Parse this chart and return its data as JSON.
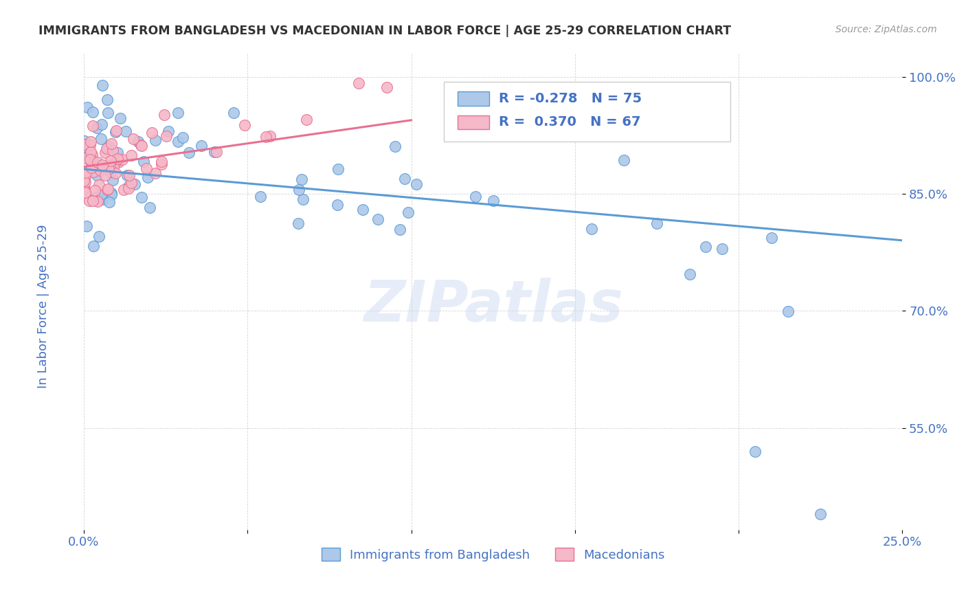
{
  "title": "IMMIGRANTS FROM BANGLADESH VS MACEDONIAN IN LABOR FORCE | AGE 25-29 CORRELATION CHART",
  "source": "Source: ZipAtlas.com",
  "ylabel": "In Labor Force | Age 25-29",
  "ytick_vals": [
    1.0,
    0.85,
    0.7,
    0.55
  ],
  "ytick_labels": [
    "100.0%",
    "85.0%",
    "70.0%",
    "55.0%"
  ],
  "xtick_vals": [
    0.0,
    0.05,
    0.1,
    0.15,
    0.2,
    0.25
  ],
  "xtick_labels": [
    "0.0%",
    "",
    "",
    "",
    "",
    "25.0%"
  ],
  "xlim": [
    0.0,
    0.25
  ],
  "ylim": [
    0.42,
    1.03
  ],
  "legend1_label": "Immigrants from Bangladesh",
  "legend2_label": "Macedonians",
  "R_bangladesh": -0.278,
  "N_bangladesh": 75,
  "R_macedonian": 0.37,
  "N_macedonian": 67,
  "color_bangladesh": "#adc8e8",
  "color_macedonian": "#f5b8c8",
  "line_color_bangladesh": "#5b9bd5",
  "line_color_macedonian": "#e87090",
  "watermark": "ZIPatlas",
  "background_color": "#ffffff",
  "title_color": "#333333",
  "axis_label_color": "#4472c4",
  "grid_color": "#d0d0d0",
  "source_color": "#999999"
}
